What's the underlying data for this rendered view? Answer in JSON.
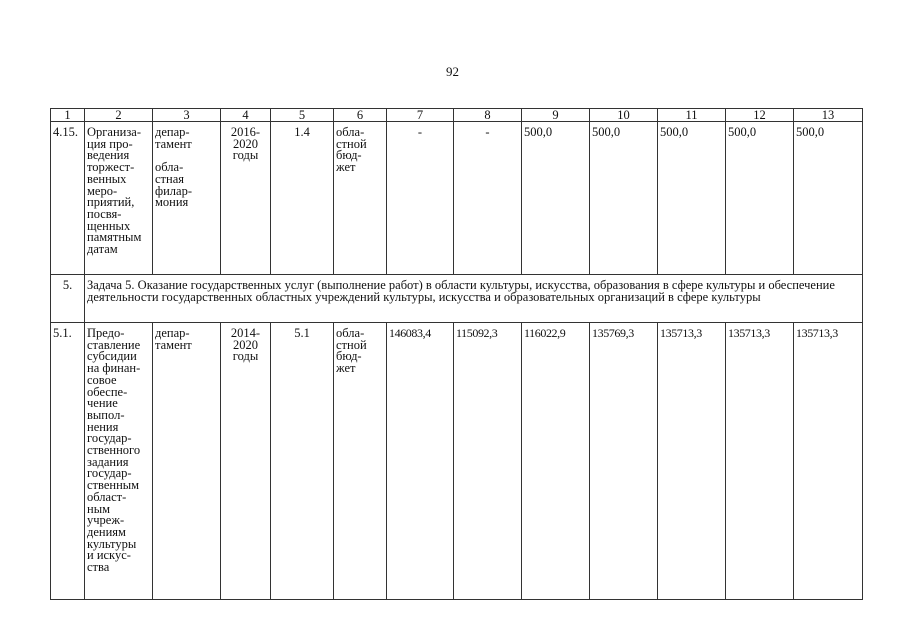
{
  "page_number": "92",
  "table": {
    "header": [
      "1",
      "2",
      "3",
      "4",
      "5",
      "6",
      "7",
      "8",
      "9",
      "10",
      "11",
      "12",
      "13"
    ],
    "rows": [
      {
        "num": "4.15.",
        "name": "Организа-\nция про-\nведения\nторжест-\nвенных\nмеро-\nприятий,\nпосвя-\nщенных\nпамятным\nдатам",
        "executor": "депар-\nтамент\n\nобла-\nстная\nфилар-\nмония",
        "period": "2016-\n2020\nгоды",
        "indicator": "1.4",
        "source": "обла-\nстной\nбюд-\nжет",
        "values": [
          "-",
          "-",
          "500,0",
          "500,0",
          "500,0",
          "500,0",
          "500,0"
        ]
      },
      {
        "num": "5.",
        "task": "Задача 5. Оказание государственных услуг (выполнение работ) в области культуры, искусства, образования в сфере культуры и обеспечение деятельности государственных областных учреждений культуры, искусства и образовательных организаций в сфере культуры"
      },
      {
        "num": "5.1.",
        "name": "Предо-\nставление\nсубсидии\nна финан-\nсовое\nобеспе-\nчение\nвыпол-\nнения\nгосудар-\nственного\nзадания\nгосудар-\nственным\nобласт-\nным\nучреж-\nдениям\nкультуры\nи искус-\nства",
        "executor": "депар-\nтамент",
        "period": "2014-\n2020\nгоды",
        "indicator": "5.1",
        "source": "обла-\nстной\nбюд-\nжет",
        "values": [
          "146083,4",
          "115092,3",
          "116022,9",
          "135769,3",
          "135713,3",
          "135713,3",
          "135713,3"
        ]
      }
    ]
  }
}
